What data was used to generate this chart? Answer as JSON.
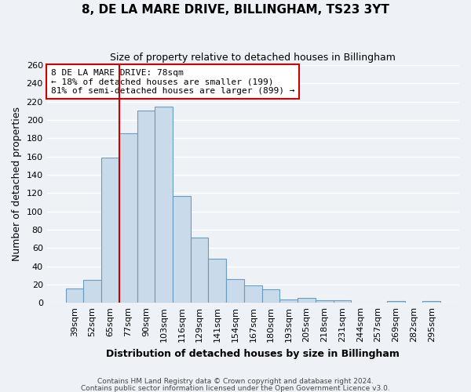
{
  "title": "8, DE LA MARE DRIVE, BILLINGHAM, TS23 3YT",
  "subtitle": "Size of property relative to detached houses in Billingham",
  "xlabel": "Distribution of detached houses by size in Billingham",
  "ylabel": "Number of detached properties",
  "bar_color": "#c9daea",
  "bar_edge_color": "#6a9cbf",
  "bg_color": "#eef2f7",
  "grid_color": "#ffffff",
  "bin_labels": [
    "39sqm",
    "52sqm",
    "65sqm",
    "77sqm",
    "90sqm",
    "103sqm",
    "116sqm",
    "129sqm",
    "141sqm",
    "154sqm",
    "167sqm",
    "180sqm",
    "193sqm",
    "205sqm",
    "218sqm",
    "231sqm",
    "244sqm",
    "257sqm",
    "269sqm",
    "282sqm",
    "295sqm"
  ],
  "bin_values": [
    16,
    25,
    159,
    185,
    210,
    215,
    117,
    71,
    48,
    26,
    19,
    15,
    4,
    5,
    3,
    3,
    0,
    0,
    2,
    0,
    2
  ],
  "vline_x_index": 3,
  "vline_color": "#cc0000",
  "annotation_line1": "8 DE LA MARE DRIVE: 78sqm",
  "annotation_line2": "← 18% of detached houses are smaller (199)",
  "annotation_line3": "81% of semi-detached houses are larger (899) →",
  "annotation_box_color": "#ffffff",
  "annotation_box_edge": "#cc0000",
  "ylim": [
    0,
    260
  ],
  "yticks": [
    0,
    20,
    40,
    60,
    80,
    100,
    120,
    140,
    160,
    180,
    200,
    220,
    240,
    260
  ],
  "footnote1": "Contains HM Land Registry data © Crown copyright and database right 2024.",
  "footnote2": "Contains public sector information licensed under the Open Government Licence v3.0."
}
